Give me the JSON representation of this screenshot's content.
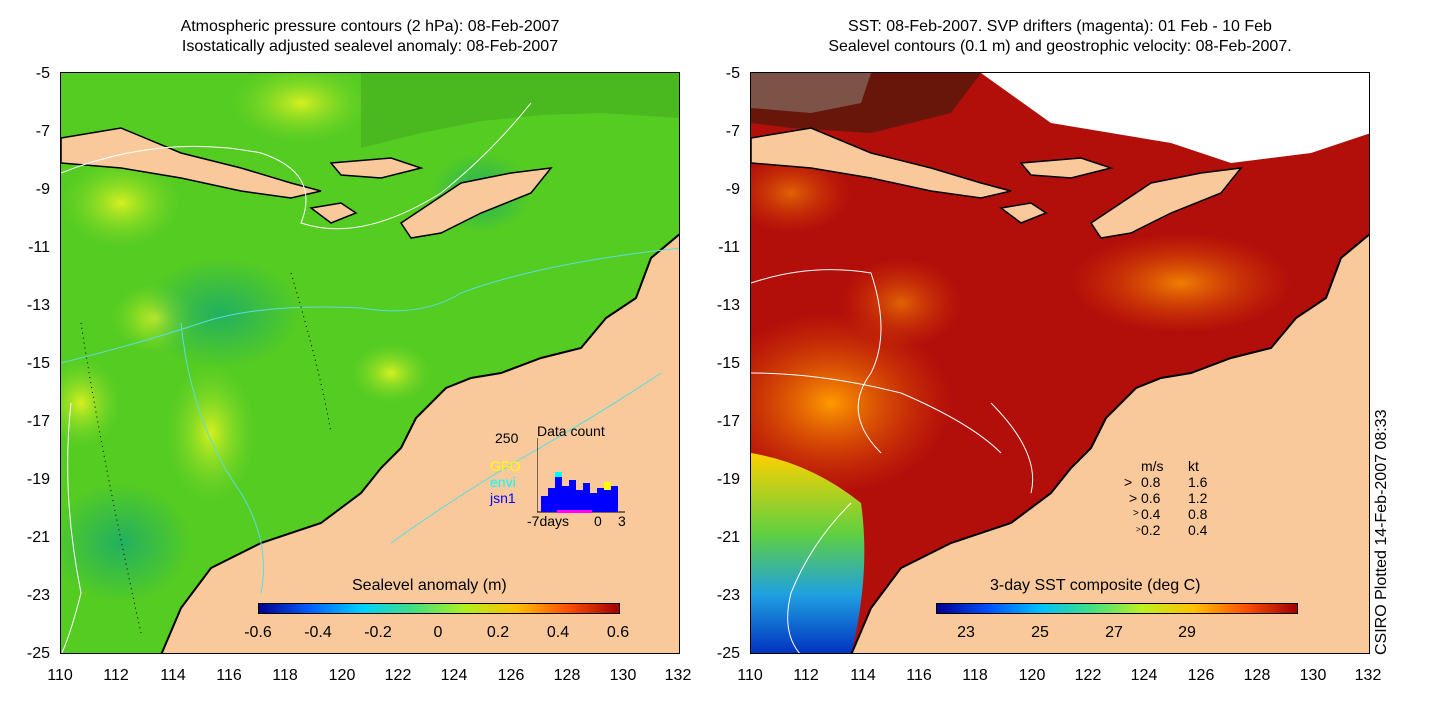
{
  "left_panel": {
    "title_line1": "Atmospheric pressure contours (2 hPa): 08-Feb-2007",
    "title_line2": "Isostatically adjusted sealevel anomaly: 08-Feb-2007",
    "colorbar_title": "Sealevel anomaly (m)",
    "colorbar_labels": [
      "-0.6",
      "-0.4",
      "-0.2",
      "0",
      "0.2",
      "0.4",
      "0.6"
    ],
    "inset": {
      "title": "Data count",
      "y_max_label": "250",
      "satellites": [
        {
          "name": "GFO",
          "color": "#ffff00"
        },
        {
          "name": "envi",
          "color": "#00ffff"
        },
        {
          "name": "jsn1",
          "color": "#0000ff"
        }
      ],
      "x_labels": [
        "-7days",
        "0",
        "3"
      ]
    }
  },
  "right_panel": {
    "title_line1": "SST: 08-Feb-2007. SVP drifters (magenta): 01 Feb - 10 Feb",
    "title_line2": "Sealevel contours (0.1 m) and geostrophic velocity: 08-Feb-2007.",
    "colorbar_title": "3-day SST composite (deg C)",
    "colorbar_labels": [
      "23",
      "25",
      "27",
      "29"
    ],
    "velocity_legend": {
      "header_ms": "m/s",
      "header_kt": "kt",
      "rows": [
        {
          "ms": "0.8",
          "kt": "1.6"
        },
        {
          "ms": "0.6",
          "kt": "1.2"
        },
        {
          "ms": "0.4",
          "kt": "0.8"
        },
        {
          "ms": "0.2",
          "kt": "0.4"
        }
      ]
    }
  },
  "axes": {
    "y_ticks": [
      "-5",
      "-7",
      "-9",
      "-11",
      "-13",
      "-15",
      "-17",
      "-19",
      "-21",
      "-23",
      "-25"
    ],
    "x_ticks": [
      "110",
      "112",
      "114",
      "116",
      "118",
      "120",
      "122",
      "124",
      "126",
      "128",
      "130",
      "132"
    ]
  },
  "side_note": "CSIRO Plotted 14-Feb-2007 08:33",
  "colors": {
    "land": "#f9c99c",
    "ssh_green": "#33cc22",
    "sst_red": "#b30f0a"
  }
}
